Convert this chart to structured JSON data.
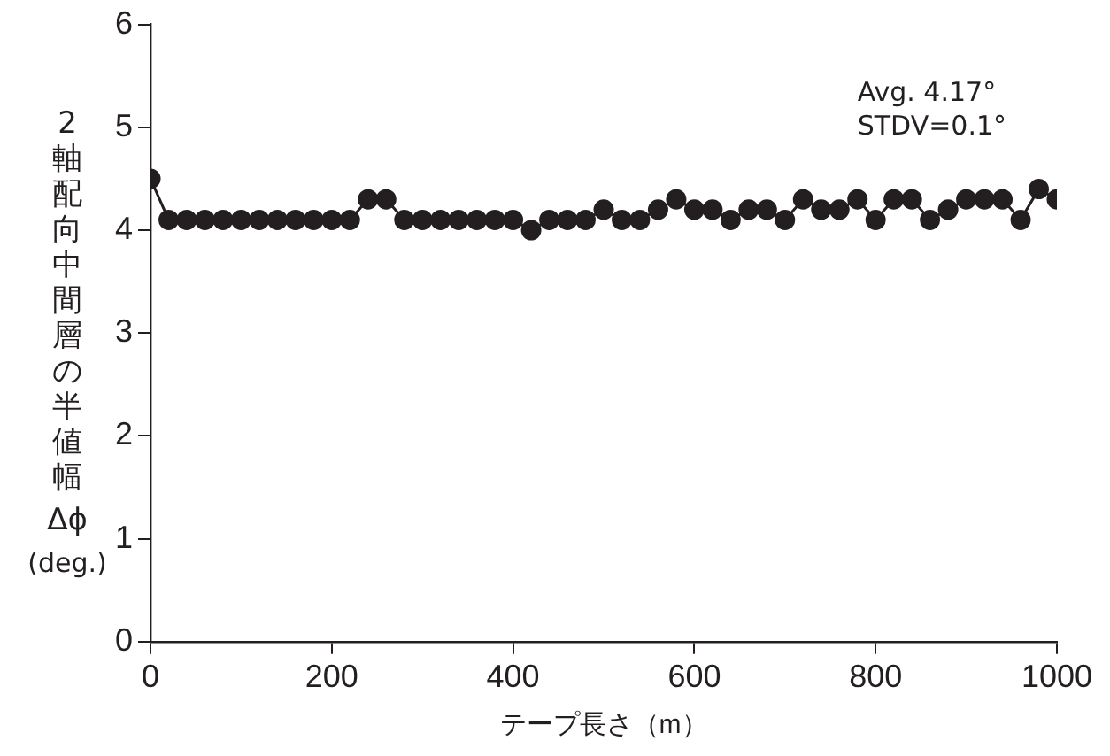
{
  "chart_data": {
    "type": "line",
    "xlabel": "テープ長さ（m）",
    "ylabel": "2軸配向中間層の半値幅 Δϕ (deg.)",
    "x": [
      0,
      20,
      40,
      60,
      80,
      100,
      120,
      140,
      160,
      180,
      200,
      220,
      240,
      260,
      280,
      300,
      320,
      340,
      360,
      380,
      400,
      420,
      440,
      460,
      480,
      500,
      520,
      540,
      560,
      580,
      600,
      620,
      640,
      660,
      680,
      700,
      720,
      740,
      760,
      780,
      800,
      820,
      840,
      860,
      880,
      900,
      920,
      940,
      960,
      980,
      1000
    ],
    "series": [
      {
        "color": "#231f20",
        "values": [
          4.5,
          4.1,
          4.1,
          4.1,
          4.1,
          4.1,
          4.1,
          4.1,
          4.1,
          4.1,
          4.1,
          4.1,
          4.3,
          4.3,
          4.1,
          4.1,
          4.1,
          4.1,
          4.1,
          4.1,
          4.1,
          4.0,
          4.1,
          4.1,
          4.1,
          4.2,
          4.1,
          4.1,
          4.2,
          4.3,
          4.2,
          4.2,
          4.1,
          4.2,
          4.2,
          4.1,
          4.3,
          4.2,
          4.2,
          4.3,
          4.1,
          4.3,
          4.3,
          4.1,
          4.2,
          4.3,
          4.3,
          4.3,
          4.1,
          4.4,
          4.3
        ]
      }
    ],
    "xlim": [
      0,
      1000
    ],
    "xticks": [
      0,
      200,
      400,
      600,
      800,
      1000
    ],
    "ylim": [
      0,
      6
    ],
    "yticks": [
      0,
      1,
      2,
      3,
      4,
      5,
      6
    ],
    "grid": false,
    "legend": false,
    "marker": "circle",
    "line_style": "solid",
    "annotations": [
      "Avg. 4.17°",
      "STDV=0.1°"
    ]
  }
}
